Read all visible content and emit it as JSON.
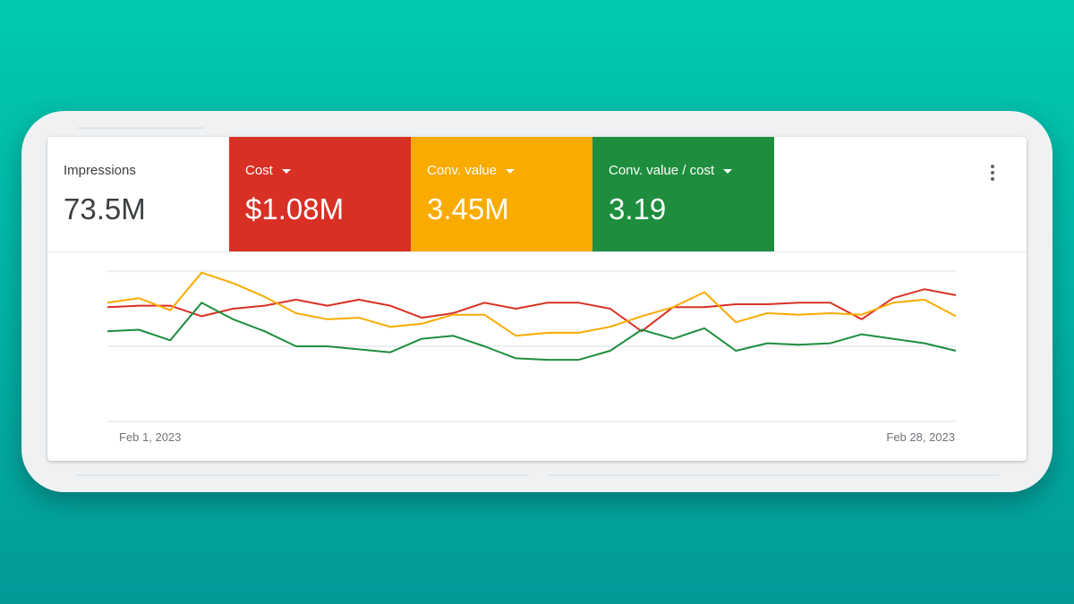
{
  "scorecards": [
    {
      "label": "Impressions",
      "value": "73.5M",
      "color": "#ffffff",
      "has_dropdown": false
    },
    {
      "label": "Cost",
      "value": "$1.08M",
      "color": "#d93025",
      "has_dropdown": true
    },
    {
      "label": "Conv. value",
      "value": "3.45M",
      "color": "#f9ab00",
      "has_dropdown": true
    },
    {
      "label": "Conv. value / cost",
      "value": "3.19",
      "color": "#1e8e3e",
      "has_dropdown": true
    }
  ],
  "menu": {
    "icon": "more-vert-icon"
  },
  "chart_data": {
    "type": "line",
    "x_start": "Feb 1, 2023",
    "x_end": "Feb 28, 2023",
    "xlabel": "",
    "ylabel": "",
    "ylim": [
      0,
      100
    ],
    "grid": true,
    "series": [
      {
        "color": "#d93025",
        "values": [
          76,
          77,
          77,
          70,
          75,
          77,
          81,
          77,
          81,
          77,
          69,
          72,
          79,
          75,
          79,
          79,
          75,
          60,
          76,
          76,
          78,
          78,
          79,
          79,
          68,
          82,
          88,
          84
        ]
      },
      {
        "color": "#f9ab00",
        "values": [
          79,
          82,
          74,
          99,
          92,
          83,
          72,
          68,
          69,
          63,
          65,
          71,
          71,
          57,
          59,
          59,
          63,
          70,
          76,
          86,
          66,
          72,
          71,
          72,
          71,
          79,
          81,
          70
        ]
      },
      {
        "color": "#1e8e3e",
        "values": [
          60,
          61,
          54,
          79,
          68,
          60,
          50,
          50,
          48,
          46,
          55,
          57,
          50,
          42,
          41,
          41,
          47,
          61,
          55,
          62,
          47,
          52,
          51,
          52,
          58,
          55,
          52,
          47
        ]
      }
    ]
  }
}
